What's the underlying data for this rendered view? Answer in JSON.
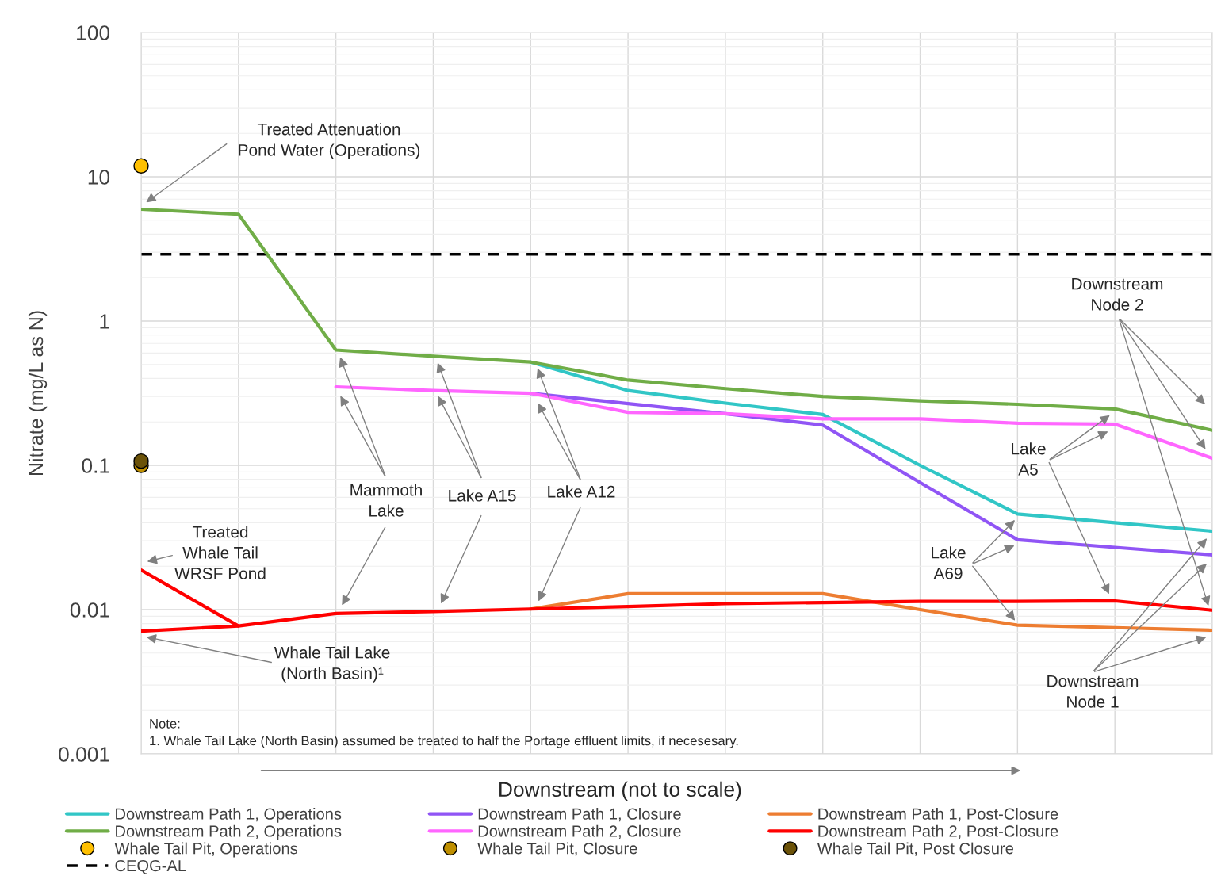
{
  "chart_data": {
    "type": "line",
    "xlabel": "Downstream (not to scale)",
    "ylabel": "Nitrate (mg/L as N)",
    "categories": [
      null,
      null,
      null,
      null,
      null,
      null,
      null,
      null,
      null,
      null,
      null,
      null
    ],
    "log": "y",
    "ylim": [
      0.001,
      100
    ],
    "yticks": [
      0.001,
      0.01,
      0.1,
      1,
      10,
      100
    ],
    "tick_labels": "y",
    "grid": true,
    "legend": "bottom",
    "series": [
      {
        "name": "Downstream Path 1, Operations",
        "color": "#31c6c6",
        "values": [
          null,
          null,
          null,
          null,
          0.52,
          0.33,
          0.27,
          0.225,
          0.1,
          0.046,
          0.04,
          0.035
        ]
      },
      {
        "name": "Downstream Path 1, Closure",
        "color": "#9055f5",
        "values": [
          null,
          null,
          null,
          null,
          0.316,
          0.268,
          0.228,
          0.19,
          0.076,
          0.0305,
          0.027,
          0.024
        ]
      },
      {
        "name": "Downstream Path 1, Post-Closure",
        "color": "#ed7d31",
        "values": [
          null,
          null,
          null,
          null,
          0.0101,
          0.0129,
          0.0129,
          0.0129,
          0.01,
          0.0078,
          0.0075,
          0.0072
        ]
      },
      {
        "name": "Downstream Path 2, Operations",
        "color": "#70ad47",
        "values": [
          5.95,
          5.5,
          0.63,
          0.57,
          0.52,
          0.39,
          0.34,
          0.3,
          0.28,
          0.265,
          0.246,
          0.175
        ]
      },
      {
        "name": "Downstream Path 2, Closure",
        "color": "#ff66ff",
        "values": [
          null,
          null,
          0.35,
          0.33,
          0.316,
          0.233,
          0.228,
          0.21,
          0.21,
          0.196,
          0.193,
          0.112
        ]
      },
      {
        "name": "Downstream Path 2, Post-Closure",
        "color": "#ff0000",
        "values": [
          0.0071,
          0.0077,
          0.0094,
          0.0097,
          0.0101,
          0.0105,
          0.011,
          0.0112,
          0.0114,
          0.0114,
          0.0115,
          0.0099
        ]
      },
      {
        "name": "Whale Tail Pit, Operations",
        "type": "scatter",
        "marker": "circle",
        "color": "#ffc000",
        "values": [
          11.9,
          null,
          null,
          null,
          null,
          null,
          null,
          null,
          null,
          null,
          null,
          null
        ]
      },
      {
        "name": "Whale Tail Pit, Closure",
        "type": "scatter",
        "marker": "circle",
        "color": "#bf8f00",
        "values": [
          0.1,
          null,
          null,
          null,
          null,
          null,
          null,
          null,
          null,
          null,
          null,
          null
        ]
      },
      {
        "name": "Whale Tail Pit, Post Closure",
        "type": "scatter",
        "marker": "circle",
        "color": "#6b5208",
        "values": [
          0.107,
          null,
          null,
          null,
          null,
          null,
          null,
          null,
          null,
          null,
          null,
          null
        ]
      },
      {
        "color": "#ff0000",
        "values": [
          0.0188,
          0.0077,
          null,
          null,
          null,
          null,
          null,
          null,
          null,
          null,
          null,
          null
        ]
      }
    ],
    "ref_lines": [
      {
        "axis": "y",
        "value": 2.9,
        "label": "CEQG-AL",
        "color": "#000000",
        "line_style": "dashed"
      }
    ],
    "annotations": [
      "Treated Attenuation\nPond Water (Operations)",
      "Mammoth\nLake",
      "Lake A15",
      "Lake A12",
      "Treated\nWhale Tail\nWRSF Pond",
      "Whale Tail Lake\n(North Basin)¹",
      "Lake\nA5",
      "Lake\nA69",
      "Downstream\nNode 2",
      "Downstream\nNode 1",
      "Note:\n1. Whale Tail Lake (North Basin) assumed be treated to half the Portage effluent limits, if necesesary."
    ]
  }
}
